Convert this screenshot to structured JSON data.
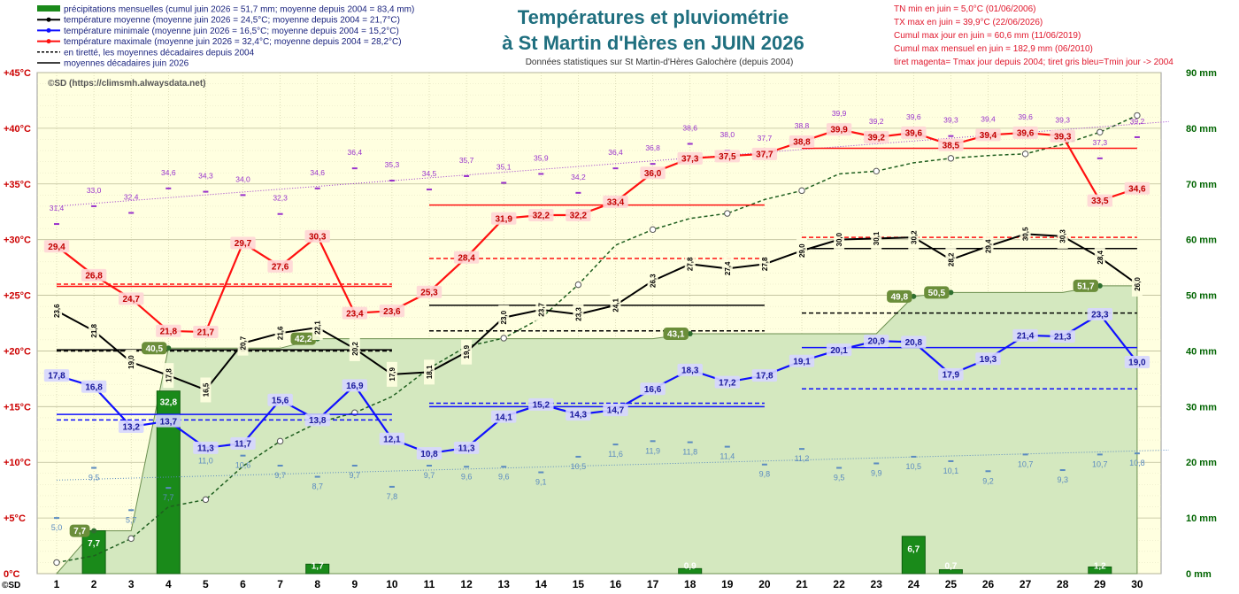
{
  "title_line1": "Températures et  pluviométrie",
  "title_line2": "à St Martin d'Hères en JUIN 2026",
  "subtitle": "Données statistiques sur St Martin-d'Hères Galochère  (depuis 2004)",
  "copyright": "©SD (https://climsmh.alwaysdata.net)",
  "corner_label": "©SD",
  "legend": [
    {
      "label": "précipitations mensuelles (cumul juin 2026 = 51,7 mm; moyenne depuis 2004 = 83,4 mm)",
      "color": "#1a8a1a",
      "kind": "bar"
    },
    {
      "label": "température moyenne (moyenne juin 2026 = 24,5°C; moyenne depuis 2004 = 21,7°C)",
      "color": "#000000",
      "kind": "line"
    },
    {
      "label": "température minimale (moyenne juin 2026 = 16,5°C; moyenne depuis 2004 = 15,2°C)",
      "color": "#1010ff",
      "kind": "line"
    },
    {
      "label": "température maximale (moyenne juin 2026 = 32,4°C; moyenne depuis 2004 = 28,2°C)",
      "color": "#ff1010",
      "kind": "line"
    },
    {
      "label": "en tiretté, les moyennes décadaires depuis 2004",
      "color": "#000000",
      "kind": "dash"
    },
    {
      "label": "moyennes décadaires juin 2026",
      "color": "#000000",
      "kind": "solid"
    }
  ],
  "records": [
    "TN min en juin = 5,0°C (01/06/2006)",
    "TX max en juin = 39,9°C (22/06/2026)",
    "Cumul max jour en juin = 60,6 mm (11/06/2019)",
    "Cumul max mensuel en juin = 182,9 mm (06/2010)",
    "tiret magenta= Tmax jour depuis 2004; tiret gris bleu=Tmin jour -> 2004"
  ],
  "colors": {
    "plot_bg": "#ffffe0",
    "cumul_fill": "#d4e8bf",
    "tmax": "#ff1010",
    "tmoy": "#000000",
    "tmin": "#1010ff",
    "rain": "#1a8a1a",
    "record_max": "#9932cc",
    "record_min": "#5b8bc0",
    "cumul_curve": "#228b22",
    "axis_left": "#cc0000",
    "axis_right": "#006400",
    "title": "#1f6f7f"
  },
  "chart_data": {
    "type": "combo",
    "x": [
      1,
      2,
      3,
      4,
      5,
      6,
      7,
      8,
      9,
      10,
      11,
      12,
      13,
      14,
      15,
      16,
      17,
      18,
      19,
      20,
      21,
      22,
      23,
      24,
      25,
      26,
      27,
      28,
      29,
      30
    ],
    "y_left": {
      "min": 0,
      "max": 45,
      "ticks": [
        0,
        5,
        10,
        15,
        20,
        25,
        30,
        35,
        40,
        45
      ],
      "tick_labels": [
        "0°C",
        "+5°C",
        "+10°C",
        "+15°C",
        "+20°C",
        "+25°C",
        "+30°C",
        "+35°C",
        "+40°C",
        "+45°C"
      ]
    },
    "y_right": {
      "min": 0,
      "max": 90,
      "ticks": [
        0,
        10,
        20,
        30,
        40,
        50,
        60,
        70,
        80,
        90
      ],
      "tick_labels": [
        "0 mm",
        "10 mm",
        "20 mm",
        "30 mm",
        "40 mm",
        "50 mm",
        "60 mm",
        "70 mm",
        "80 mm",
        "90 mm"
      ]
    },
    "tmax": [
      29.4,
      26.8,
      24.7,
      21.8,
      21.7,
      29.7,
      27.6,
      30.3,
      23.4,
      23.6,
      25.3,
      28.4,
      31.9,
      32.2,
      32.2,
      33.4,
      36.0,
      37.3,
      37.5,
      37.7,
      38.8,
      39.9,
      39.2,
      39.6,
      38.5,
      39.4,
      39.6,
      39.3,
      33.5,
      34.6
    ],
    "tmax_labels": [
      "29,4",
      "26,8",
      "24,7",
      "21,8",
      "21,7",
      "29,7",
      "27,6",
      "30,3",
      "23,4",
      "23,6",
      "25,3",
      "28,4",
      "31,9",
      "32,2",
      "32,2",
      "33,4",
      "36,0",
      "37,3",
      "37,5",
      "37,7",
      "38,8",
      "39,9",
      "39,2",
      "39,6",
      "38,5",
      "39,4",
      "39,6",
      "39,3",
      "33,5",
      "34,6"
    ],
    "tmoy": [
      23.6,
      21.8,
      19.0,
      17.8,
      16.5,
      20.7,
      21.6,
      22.1,
      20.2,
      17.9,
      18.1,
      19.9,
      23.0,
      23.7,
      23.3,
      24.1,
      26.3,
      27.8,
      27.4,
      27.8,
      29.0,
      30.0,
      30.1,
      30.2,
      28.2,
      29.4,
      30.5,
      30.3,
      28.4,
      26.0
    ],
    "tmoy_labels": [
      "23,6",
      "21,8",
      "19,0",
      "17,8",
      "16,5",
      "20,7",
      "21,6",
      "22,1",
      "20,2",
      "17,9",
      "18,1",
      "19,9",
      "23,0",
      "23,7",
      "23,3",
      "24,1",
      "26,3",
      "27,8",
      "27,4",
      "27,8",
      "29,0",
      "30,0",
      "30,1",
      "30,2",
      "28,2",
      "29,4",
      "30,5",
      "30,3",
      "28,4",
      "26,0"
    ],
    "tmin": [
      17.8,
      16.8,
      13.2,
      13.7,
      11.3,
      11.7,
      15.6,
      13.8,
      16.9,
      12.1,
      10.8,
      11.3,
      14.1,
      15.2,
      14.3,
      14.7,
      16.6,
      18.3,
      17.2,
      17.8,
      19.1,
      20.1,
      20.9,
      20.8,
      17.9,
      19.3,
      21.4,
      21.3,
      23.3,
      19.0
    ],
    "tmin_labels": [
      "17,8",
      "16,8",
      "13,2",
      "13,7",
      "11,3",
      "11,7",
      "15,6",
      "13,8",
      "16,9",
      "12,1",
      "10,8",
      "11,3",
      "14,1",
      "15,2",
      "14,3",
      "14,7",
      "16,6",
      "18,3",
      "17,2",
      "17,8",
      "19,1",
      "20,1",
      "20,9",
      "20,8",
      "17,9",
      "19,3",
      "21,4",
      "21,3",
      "23,3",
      "19,0"
    ],
    "record_tmax": [
      31.4,
      33.0,
      32.4,
      34.6,
      34.3,
      34.0,
      32.3,
      34.6,
      36.4,
      35.3,
      34.5,
      35.7,
      35.1,
      35.9,
      34.2,
      36.4,
      36.8,
      38.6,
      38.0,
      37.7,
      38.8,
      39.9,
      39.2,
      39.6,
      39.3,
      39.4,
      39.6,
      39.3,
      37.3,
      39.2
    ],
    "record_tmax_labels": [
      "31,4",
      "33,0",
      "32,4",
      "34,6",
      "34,3",
      "34,0",
      "32,3",
      "34,6",
      "36,4",
      "35,3",
      "34,5",
      "35,7",
      "35,1",
      "35,9",
      "34,2",
      "36,4",
      "36,8",
      "38,6",
      "38,0",
      "37,7",
      "38,8",
      "39,9",
      "39,2",
      "39,6",
      "39,3",
      "39,4",
      "39,6",
      "39,3",
      "37,3",
      "39,2"
    ],
    "record_tmin": [
      5.0,
      9.5,
      5.7,
      7.7,
      11.0,
      10.6,
      9.7,
      8.7,
      9.7,
      7.8,
      9.7,
      9.6,
      9.6,
      9.1,
      10.5,
      11.6,
      11.9,
      11.8,
      11.4,
      9.8,
      11.2,
      9.5,
      9.9,
      10.5,
      10.1,
      9.2,
      10.7,
      9.3,
      10.7,
      10.8
    ],
    "record_tmin_labels": [
      "5,0",
      "9,5",
      "5,7",
      "7,7",
      "11,0",
      "10,6",
      "9,7",
      "8,7",
      "9,7",
      "7,8",
      "9,7",
      "9,6",
      "9,6",
      "9,1",
      "10,5",
      "11,6",
      "11,9",
      "11,8",
      "11,4",
      "9,8",
      "11,2",
      "9,5",
      "9,9",
      "10,5",
      "10,1",
      "9,2",
      "10,7",
      "9,3",
      "10,7",
      "10,8"
    ],
    "rain_days": [
      2,
      4,
      8,
      18,
      24,
      25,
      29
    ],
    "rain_mm": [
      7.7,
      32.8,
      1.7,
      0.9,
      6.7,
      0.7,
      1.2
    ],
    "rain_labels": [
      "7,7",
      "32,8",
      "1,7",
      "0,9",
      "6,7",
      "0,7",
      "1,2"
    ],
    "cumul_2026": [
      0,
      7.7,
      7.7,
      40.5,
      40.5,
      40.5,
      40.5,
      42.2,
      42.2,
      42.2,
      42.2,
      42.2,
      42.2,
      42.2,
      42.2,
      42.2,
      42.2,
      43.1,
      43.1,
      43.1,
      43.1,
      43.1,
      43.1,
      49.8,
      50.5,
      50.5,
      50.5,
      50.5,
      51.7,
      51.7
    ],
    "cumul_labels": [
      {
        "day": 2,
        "label": "7,7"
      },
      {
        "day": 4,
        "label": "40,5"
      },
      {
        "day": 8,
        "label": "42,2"
      },
      {
        "day": 18,
        "label": "43,1"
      },
      {
        "day": 24,
        "label": "49,8"
      },
      {
        "day": 25,
        "label": "50,5"
      },
      {
        "day": 29,
        "label": "51,7"
      }
    ],
    "cumul_normal": [
      2,
      3.2,
      6.3,
      12,
      13.3,
      19.3,
      23.8,
      27.1,
      28.9,
      31.8,
      36.9,
      40.8,
      42.3,
      45.9,
      51.9,
      59,
      61.8,
      63.8,
      64.7,
      67.2,
      68.8,
      71.8,
      72.3,
      73.8,
      74.6,
      75.1,
      75.4,
      77.1,
      79.3,
      82.3
    ],
    "decade_2026": {
      "tmax": [
        25.8,
        33.1,
        38.2
      ],
      "tmoy": [
        20.1,
        24.1,
        29.2
      ],
      "tmin": [
        14.3,
        15.0,
        20.3
      ]
    },
    "decade_normal": {
      "tmax": [
        26.0,
        28.3,
        30.2
      ],
      "tmoy": [
        20.0,
        21.8,
        23.4
      ],
      "tmin": [
        13.8,
        15.3,
        16.6
      ]
    },
    "trend_max": [
      33.0,
      40.6
    ],
    "trend_min": [
      8.4,
      11.1
    ]
  }
}
